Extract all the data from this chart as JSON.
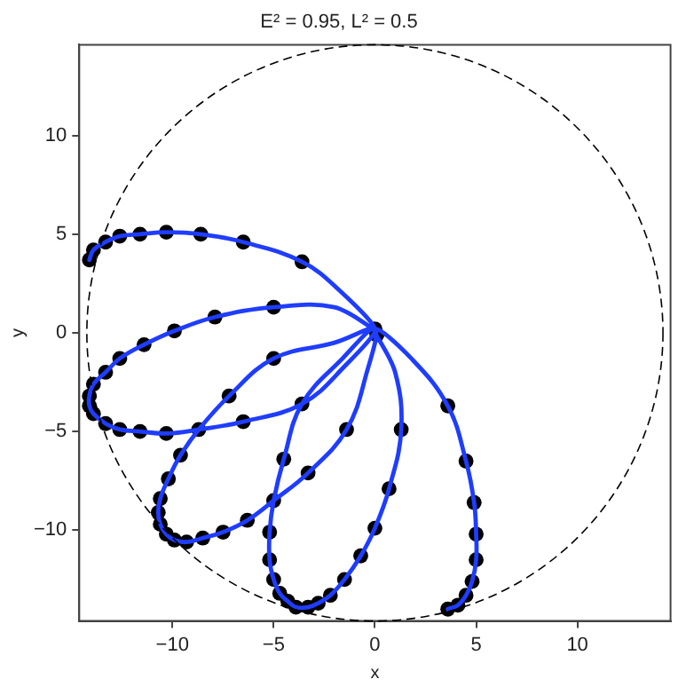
{
  "chart_data": {
    "type": "line",
    "title": "E² = 0.95, L² = 0.5",
    "xlabel": "x",
    "ylabel": "y",
    "xlim": [
      -14.6,
      14.6
    ],
    "ylim": [
      -14.6,
      14.6
    ],
    "xticks": [
      -10,
      -5,
      0,
      5,
      10
    ],
    "yticks": [
      -10,
      -5,
      0,
      5,
      10
    ],
    "grid": false,
    "legend": false,
    "series": [
      {
        "color": "#1f3dff",
        "line_style": "solid",
        "marker": "none",
        "x": [
          -14.1,
          -13.9,
          -13.3,
          -12.6,
          -11.6,
          -10.3,
          -8.6,
          -6.5,
          -3.6,
          -1.7,
          0,
          -2,
          -5,
          -7.9,
          -9.9,
          -11.4,
          -12.6,
          -13.3,
          -13.9,
          -14.1,
          -14.1,
          -13.9,
          -13.3,
          -12.6,
          -11.6,
          -10.3,
          -8.7,
          -6.5,
          -3.6,
          -1.5,
          0,
          -2,
          -5,
          -7.2,
          -8.7,
          -9.6,
          -10.2,
          -10.6,
          -10.7,
          -10.6,
          -10.3,
          -9.9,
          -9.3,
          -8.5,
          -7.5,
          -6.3,
          -5,
          -3.3,
          -1.4,
          -0.4,
          0,
          -1.6,
          -3.6,
          -4.5,
          -5,
          -5.2,
          -5.2,
          -5,
          -4.7,
          -4.3,
          -3.9,
          -3.3,
          -2.8,
          -2.2,
          -1.5,
          -0.7,
          0,
          0.7,
          1.3,
          1,
          0,
          1.8,
          3.6,
          4.5,
          4.9,
          5,
          5,
          4.8,
          4.5,
          4.1,
          3.6
        ],
        "values": [
          3.7,
          4.2,
          4.6,
          4.9,
          5,
          5.1,
          5,
          4.6,
          3.6,
          2.1,
          0.2,
          1.3,
          1.3,
          0.8,
          0.1,
          -0.6,
          -1.3,
          -2,
          -2.6,
          -3.2,
          -3.7,
          -4.1,
          -4.6,
          -4.9,
          -5,
          -5.1,
          -4.9,
          -4.5,
          -3.6,
          -1.7,
          0.2,
          -0.5,
          -1.3,
          -3.2,
          -4.9,
          -6.2,
          -7.4,
          -8.4,
          -9.1,
          -9.7,
          -10.2,
          -10.5,
          -10.6,
          -10.4,
          -10.1,
          -9.5,
          -8.5,
          -7.1,
          -4.9,
          -2,
          0.2,
          -1.3,
          -3.6,
          -6.4,
          -8.5,
          -10.1,
          -11.5,
          -12.5,
          -13.2,
          -13.6,
          -13.9,
          -13.9,
          -13.7,
          -13.3,
          -12.5,
          -11.3,
          -9.9,
          -7.9,
          -4.9,
          -2,
          0.2,
          -1.3,
          -3.7,
          -6.5,
          -8.6,
          -10.2,
          -11.5,
          -12.6,
          -13.3,
          -13.8,
          -14
        ]
      },
      {
        "type": "scatter",
        "color": "#000000",
        "marker": "circle",
        "x": [
          -14.1,
          -13.9,
          -13.3,
          -12.6,
          -11.6,
          -10.3,
          -8.6,
          -6.5,
          -3.6,
          0,
          0.1,
          -5,
          -7.9,
          -9.9,
          -11.4,
          -12.6,
          -13.3,
          -13.9,
          -14.1,
          -14.1,
          -13.9,
          -13.3,
          -12.6,
          -11.6,
          -10.3,
          -8.7,
          -6.5,
          -3.6,
          -5,
          -7.2,
          -9.6,
          -10.2,
          -10.6,
          -10.7,
          -10.6,
          -10.3,
          -9.9,
          -9.3,
          -8.5,
          -7.5,
          -6.3,
          -5,
          -3.3,
          -1.4,
          -4.5,
          -5.2,
          -5.2,
          -5,
          -4.7,
          -4.3,
          -3.9,
          -3.3,
          -2.8,
          -2.2,
          -1.5,
          -0.7,
          0,
          0.7,
          1.3,
          3.6,
          4.5,
          4.9,
          5,
          5,
          4.8,
          4.5,
          4.1,
          3.6
        ],
        "values": [
          3.7,
          4.2,
          4.6,
          4.9,
          5,
          5.1,
          5,
          4.6,
          3.6,
          0.2,
          -0.1,
          1.3,
          0.8,
          0.1,
          -0.6,
          -1.3,
          -2,
          -2.6,
          -3.2,
          -3.7,
          -4.1,
          -4.6,
          -4.9,
          -5,
          -5.1,
          -4.9,
          -4.5,
          -3.6,
          -1.3,
          -3.2,
          -6.2,
          -7.4,
          -8.4,
          -9.1,
          -9.7,
          -10.2,
          -10.5,
          -10.6,
          -10.4,
          -10.1,
          -9.5,
          -8.5,
          -7.1,
          -4.9,
          -6.4,
          -10.1,
          -11.5,
          -12.5,
          -13.2,
          -13.6,
          -13.9,
          -13.9,
          -13.7,
          -13.3,
          -12.5,
          -11.3,
          -9.9,
          -7.9,
          -4.9,
          -3.7,
          -6.5,
          -8.6,
          -10.2,
          -11.5,
          -12.6,
          -13.3,
          -13.8,
          -14
        ]
      }
    ]
  }
}
